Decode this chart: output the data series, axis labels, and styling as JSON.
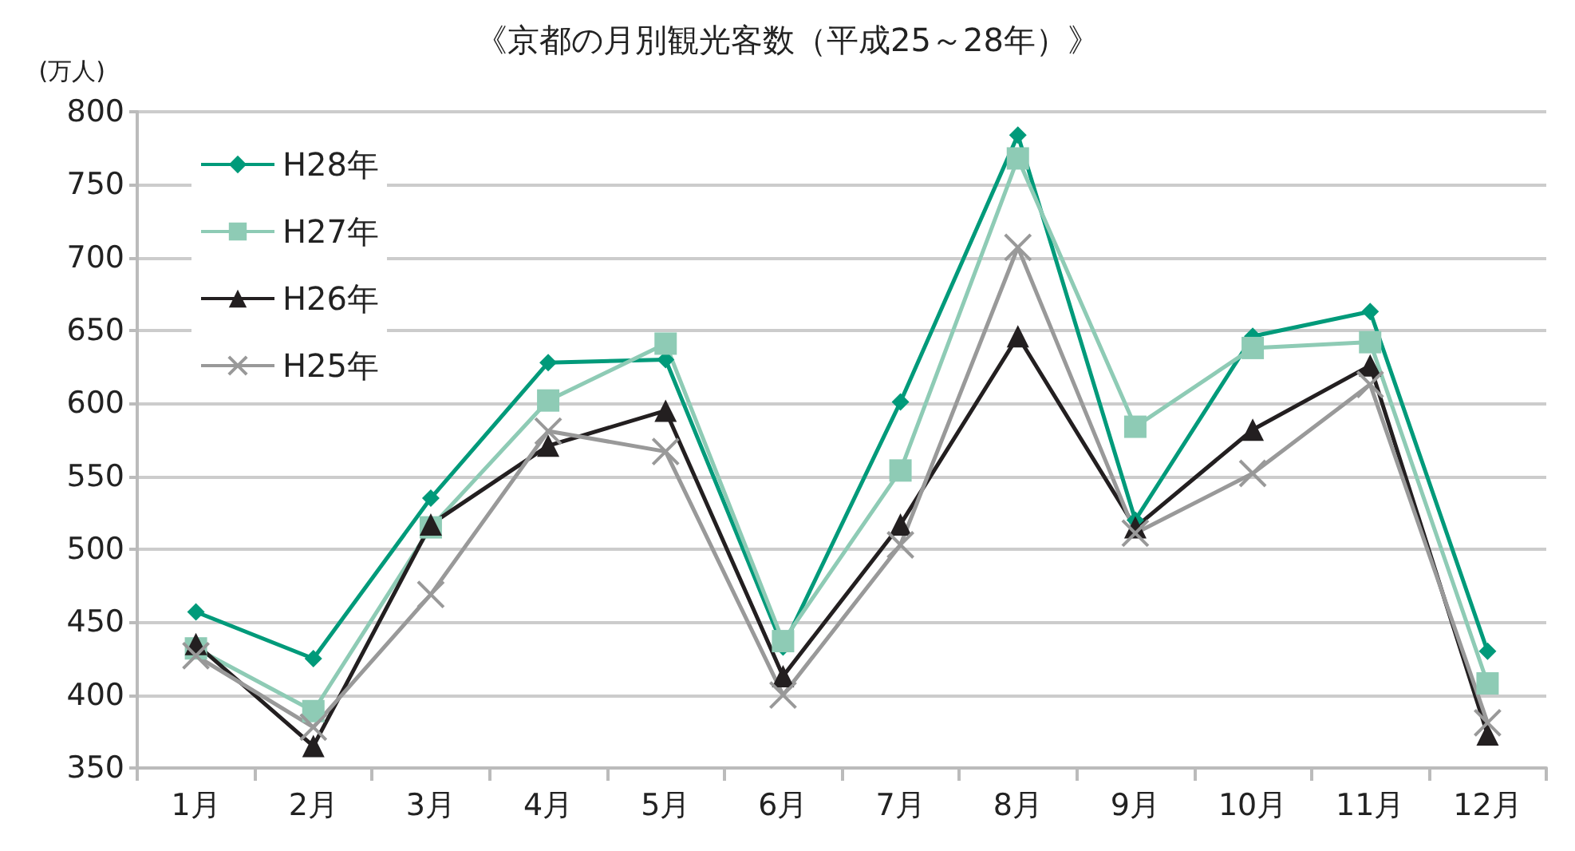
{
  "chart_data": {
    "type": "line",
    "title": "《京都の月別観光客数（平成25～28年）》",
    "ylabel": "(万人)",
    "categories": [
      "1月",
      "2月",
      "3月",
      "4月",
      "5月",
      "6月",
      "7月",
      "8月",
      "9月",
      "10月",
      "11月",
      "12月"
    ],
    "series": [
      {
        "name": "H28年",
        "color": "#009a7a",
        "marker": "diamond",
        "values": [
          457,
          425,
          535,
          628,
          630,
          433,
          601,
          784,
          520,
          646,
          663,
          430
        ]
      },
      {
        "name": "H27年",
        "color": "#8ecbb5",
        "marker": "square",
        "values": [
          432,
          389,
          515,
          602,
          641,
          437,
          554,
          768,
          584,
          638,
          642,
          408
        ]
      },
      {
        "name": "H26年",
        "color": "#231f20",
        "marker": "triangle",
        "values": [
          435,
          365,
          517,
          571,
          595,
          413,
          517,
          646,
          515,
          582,
          626,
          373
        ]
      },
      {
        "name": "H25年",
        "color": "#999999",
        "marker": "cross",
        "values": [
          427,
          378,
          469,
          581,
          567,
          400,
          503,
          707,
          511,
          552,
          613,
          381
        ]
      }
    ],
    "ylim": [
      350,
      800
    ],
    "yticks": [
      350,
      400,
      450,
      500,
      550,
      600,
      650,
      700,
      750,
      800
    ],
    "grid": "y",
    "legend": "top left"
  }
}
